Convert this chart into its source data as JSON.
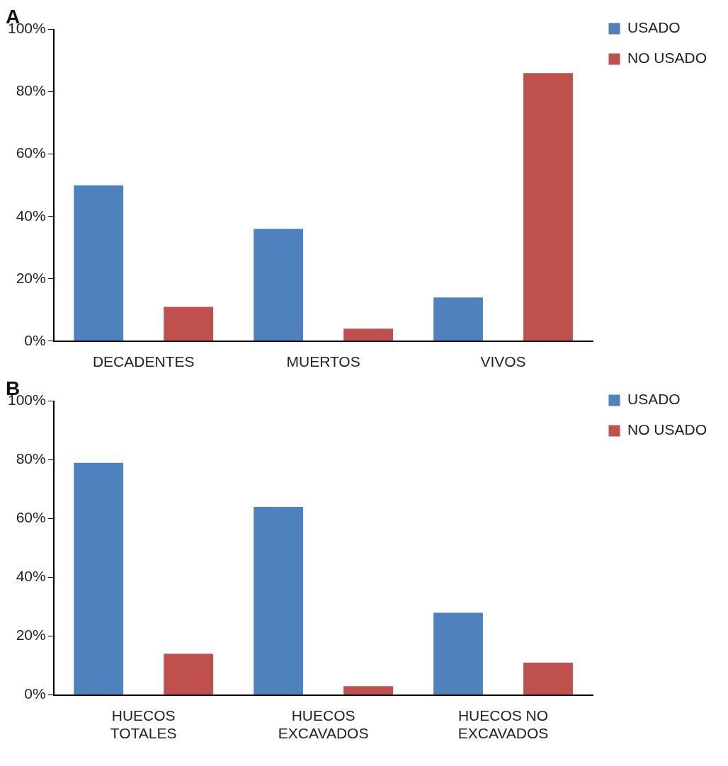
{
  "chart_data": [
    {
      "type": "bar",
      "title": "A",
      "categories": [
        "DECADENTES",
        "MUERTOS",
        "VIVOS"
      ],
      "series": [
        {
          "name": "USADO",
          "color": "#4f81bd",
          "values": [
            50,
            36,
            14
          ]
        },
        {
          "name": "NO USADO",
          "color": "#c0504d",
          "values": [
            11,
            4,
            86
          ]
        }
      ],
      "ylim": [
        0,
        100
      ],
      "yticks": [
        {
          "value": 0,
          "label": "0%"
        },
        {
          "value": 20,
          "label": "20%"
        },
        {
          "value": 40,
          "label": "40%"
        },
        {
          "value": 60,
          "label": "60%"
        },
        {
          "value": 80,
          "label": "80%"
        },
        {
          "value": 100,
          "label": "100%"
        }
      ],
      "grid": false,
      "legend": "top right"
    },
    {
      "type": "bar",
      "title": "B",
      "categories": [
        "HUECOS TOTALES",
        "HUECOS EXCAVADOS",
        "HUECOS NO EXCAVADOS"
      ],
      "series": [
        {
          "name": "USADO",
          "color": "#4f81bd",
          "values": [
            79,
            64,
            28
          ]
        },
        {
          "name": "NO USADO",
          "color": "#c0504d",
          "values": [
            14,
            3,
            11
          ]
        }
      ],
      "ylim": [
        0,
        100
      ],
      "yticks": [
        {
          "value": 0,
          "label": "0%"
        },
        {
          "value": 20,
          "label": "20%"
        },
        {
          "value": 40,
          "label": "40%"
        },
        {
          "value": 60,
          "label": "60%"
        },
        {
          "value": 80,
          "label": "80%"
        },
        {
          "value": 100,
          "label": "100%"
        }
      ],
      "grid": false,
      "legend": "top right"
    }
  ]
}
